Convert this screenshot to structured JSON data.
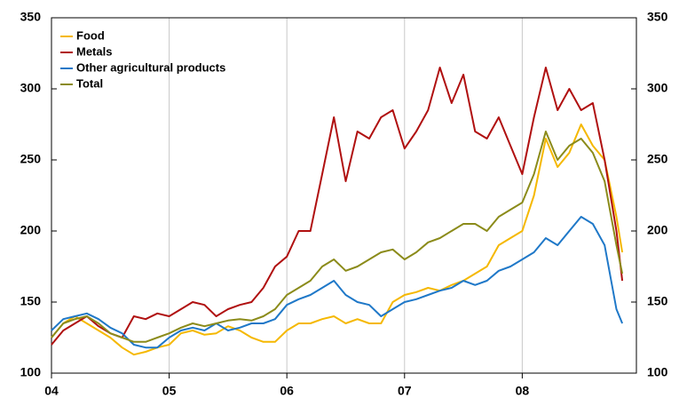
{
  "chart_data": {
    "type": "line",
    "x": [
      2004.0,
      2004.1,
      2004.2,
      2004.3,
      2004.4,
      2004.5,
      2004.6,
      2004.7,
      2004.8,
      2004.9,
      2005.0,
      2005.1,
      2005.2,
      2005.3,
      2005.4,
      2005.5,
      2005.6,
      2005.7,
      2005.8,
      2005.9,
      2006.0,
      2006.1,
      2006.2,
      2006.3,
      2006.4,
      2006.5,
      2006.6,
      2006.7,
      2006.8,
      2006.9,
      2007.0,
      2007.1,
      2007.2,
      2007.3,
      2007.4,
      2007.5,
      2007.6,
      2007.7,
      2007.8,
      2007.9,
      2008.0,
      2008.1,
      2008.2,
      2008.3,
      2008.4,
      2008.5,
      2008.6,
      2008.7,
      2008.8,
      2008.85
    ],
    "series": [
      {
        "name": "Food",
        "color": "#f5b800",
        "values": [
          125,
          135,
          140,
          135,
          130,
          125,
          118,
          113,
          115,
          118,
          120,
          128,
          130,
          127,
          128,
          133,
          130,
          125,
          122,
          122,
          130,
          135,
          135,
          138,
          140,
          135,
          138,
          135,
          135,
          150,
          155,
          157,
          160,
          158,
          162,
          165,
          170,
          175,
          190,
          195,
          200,
          225,
          265,
          245,
          255,
          275,
          260,
          250,
          210,
          185
        ]
      },
      {
        "name": "Metals",
        "color": "#b01010",
        "values": [
          120,
          130,
          135,
          140,
          133,
          128,
          125,
          140,
          138,
          142,
          140,
          145,
          150,
          148,
          140,
          145,
          148,
          150,
          160,
          175,
          182,
          200,
          200,
          240,
          280,
          235,
          270,
          265,
          280,
          285,
          258,
          270,
          285,
          315,
          290,
          310,
          270,
          265,
          280,
          260,
          240,
          280,
          315,
          285,
          300,
          285,
          290,
          250,
          200,
          165
        ]
      },
      {
        "name": "Other agricultural products",
        "color": "#1f78c8",
        "values": [
          130,
          138,
          140,
          142,
          138,
          132,
          128,
          120,
          118,
          118,
          125,
          130,
          132,
          130,
          135,
          130,
          132,
          135,
          135,
          138,
          148,
          152,
          155,
          160,
          165,
          155,
          150,
          148,
          140,
          145,
          150,
          152,
          155,
          158,
          160,
          165,
          162,
          165,
          172,
          175,
          180,
          185,
          195,
          190,
          200,
          210,
          205,
          190,
          145,
          135
        ]
      },
      {
        "name": "Total",
        "color": "#8b8b1a",
        "values": [
          125,
          135,
          138,
          140,
          135,
          128,
          125,
          122,
          122,
          125,
          128,
          132,
          135,
          133,
          135,
          137,
          138,
          137,
          140,
          145,
          155,
          160,
          165,
          175,
          180,
          172,
          175,
          180,
          185,
          187,
          180,
          185,
          192,
          195,
          200,
          205,
          205,
          200,
          210,
          215,
          220,
          240,
          270,
          250,
          260,
          265,
          255,
          235,
          190,
          170
        ]
      }
    ],
    "xlim": [
      2004,
      2008.97
    ],
    "xticks": [
      {
        "value": 2004,
        "label": "04"
      },
      {
        "value": 2005,
        "label": "05"
      },
      {
        "value": 2006,
        "label": "06"
      },
      {
        "value": 2007,
        "label": "07"
      },
      {
        "value": 2008,
        "label": "08"
      }
    ],
    "ylim": [
      100,
      350
    ],
    "yticks": [
      100,
      150,
      200,
      250,
      300,
      350
    ],
    "y2lim": [
      100,
      350
    ],
    "y2ticks": [
      100,
      150,
      200,
      250,
      300,
      350
    ],
    "grid": "x",
    "legend": "upper left"
  }
}
